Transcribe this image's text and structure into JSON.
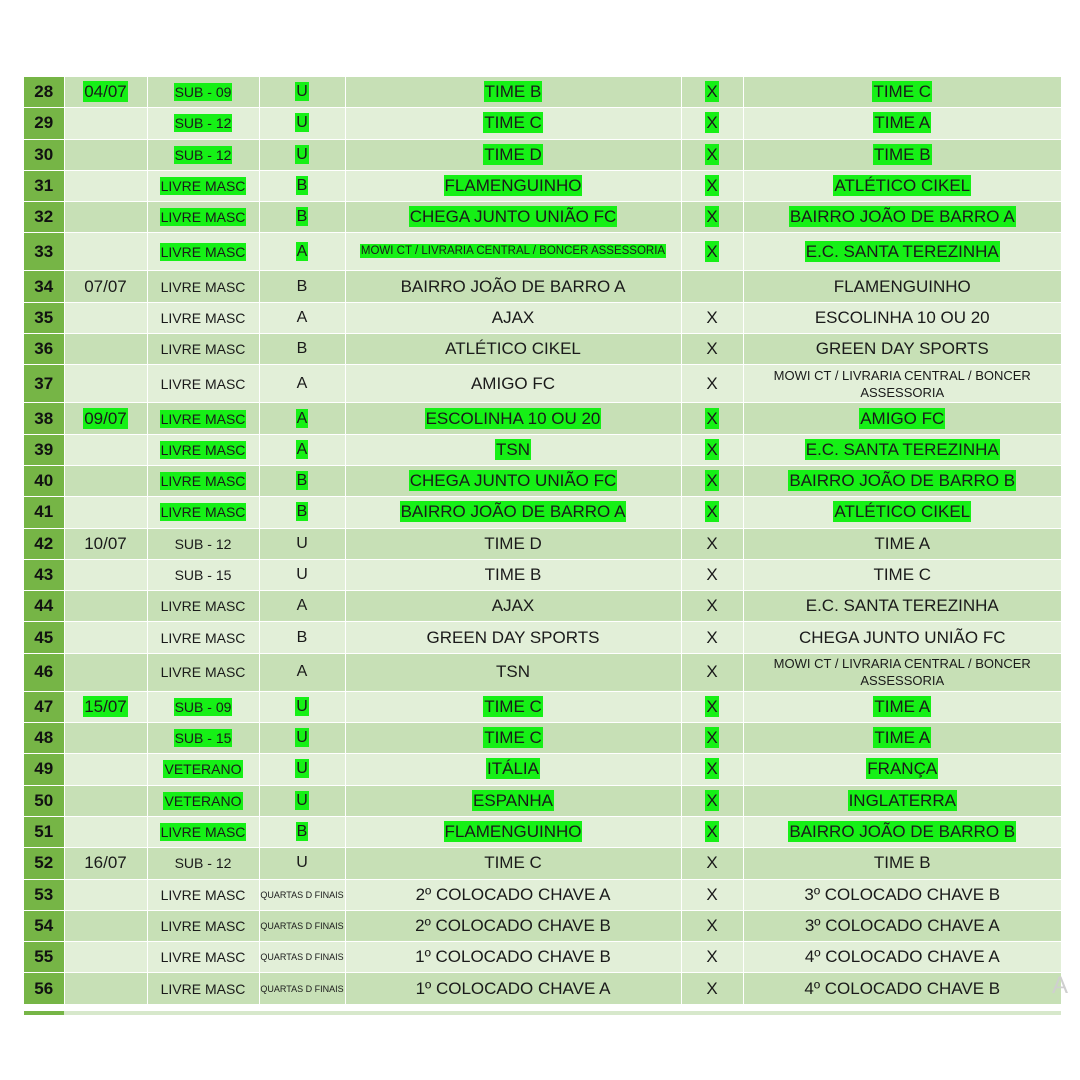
{
  "colors": {
    "row_odd": "#c7e0b6",
    "row_even": "#e2efd8",
    "number_col": "#76b546",
    "highlight": "#16f016"
  },
  "rows": [
    {
      "num": "28",
      "date": "04/07",
      "cat": "SUB - 09",
      "grp": "U",
      "home": "TIME B",
      "vs": "X",
      "away": "TIME C",
      "hl": true
    },
    {
      "num": "29",
      "date": "",
      "cat": "SUB - 12",
      "grp": "U",
      "home": "TIME C",
      "vs": "X",
      "away": "TIME A",
      "hl": true
    },
    {
      "num": "30",
      "date": "",
      "cat": "SUB - 12",
      "grp": "U",
      "home": "TIME D",
      "vs": "X",
      "away": "TIME B",
      "hl": true
    },
    {
      "num": "31",
      "date": "",
      "cat": "LIVRE MASC",
      "grp": "B",
      "home": "FLAMENGUINHO",
      "vs": "X",
      "away": "ATLÉTICO CIKEL",
      "hl": true
    },
    {
      "num": "32",
      "date": "",
      "cat": "LIVRE MASC",
      "grp": "B",
      "home": "CHEGA JUNTO UNIÃO FC",
      "vs": "X",
      "away": "BAIRRO JOÃO DE BARRO A",
      "hl": true
    },
    {
      "num": "33",
      "date": "",
      "cat": "LIVRE MASC",
      "grp": "A",
      "home": "MOWI CT / LIVRARIA CENTRAL / BONCER ASSESSORIA",
      "vs": "X",
      "away": "E.C. SANTA TEREZINHA",
      "hl": true,
      "tall": true,
      "home_small": true
    },
    {
      "num": "34",
      "date": "07/07",
      "cat": "LIVRE MASC",
      "grp": "B",
      "home": "BAIRRO JOÃO DE BARRO A",
      "vs": "",
      "away": "FLAMENGUINHO",
      "hl": false
    },
    {
      "num": "35",
      "date": "",
      "cat": "LIVRE MASC",
      "grp": "A",
      "home": "AJAX",
      "vs": "X",
      "away": "ESCOLINHA 10 OU 20",
      "hl": false
    },
    {
      "num": "36",
      "date": "",
      "cat": "LIVRE MASC",
      "grp": "B",
      "home": "ATLÉTICO CIKEL",
      "vs": "X",
      "away": "GREEN DAY SPORTS",
      "hl": false
    },
    {
      "num": "37",
      "date": "",
      "cat": "LIVRE MASC",
      "grp": "A",
      "home": "AMIGO FC",
      "vs": "X",
      "away": "MOWI CT / LIVRARIA CENTRAL / BONCER ASSESSORIA",
      "hl": false,
      "tall": true,
      "away_small": true
    },
    {
      "num": "38",
      "date": "09/07",
      "cat": "LIVRE MASC",
      "grp": "A",
      "home": "ESCOLINHA 10 OU 20",
      "vs": "X",
      "away": "AMIGO FC",
      "hl": true
    },
    {
      "num": "39",
      "date": "",
      "cat": "LIVRE MASC",
      "grp": "A",
      "home": "TSN",
      "vs": "X",
      "away": "E.C. SANTA TEREZINHA",
      "hl": true
    },
    {
      "num": "40",
      "date": "",
      "cat": "LIVRE MASC",
      "grp": "B",
      "home": "CHEGA JUNTO UNIÃO FC",
      "vs": "X",
      "away": "BAIRRO JOÃO DE BARRO B",
      "hl": true
    },
    {
      "num": "41",
      "date": "",
      "cat": "LIVRE MASC",
      "grp": "B",
      "home": "BAIRRO JOÃO DE BARRO A",
      "vs": "X",
      "away": "ATLÉTICO CIKEL",
      "hl": true
    },
    {
      "num": "42",
      "date": "10/07",
      "cat": "SUB - 12",
      "grp": "U",
      "home": "TIME D",
      "vs": "X",
      "away": "TIME A",
      "hl": false
    },
    {
      "num": "43",
      "date": "",
      "cat": "SUB - 15",
      "grp": "U",
      "home": "TIME B",
      "vs": "X",
      "away": "TIME C",
      "hl": false
    },
    {
      "num": "44",
      "date": "",
      "cat": "LIVRE MASC",
      "grp": "A",
      "home": "AJAX",
      "vs": "X",
      "away": "E.C. SANTA TEREZINHA",
      "hl": false
    },
    {
      "num": "45",
      "date": "",
      "cat": "LIVRE MASC",
      "grp": "B",
      "home": "GREEN DAY SPORTS",
      "vs": "X",
      "away": "CHEGA JUNTO UNIÃO FC",
      "hl": false
    },
    {
      "num": "46",
      "date": "",
      "cat": "LIVRE MASC",
      "grp": "A",
      "home": "TSN",
      "vs": "X",
      "away": "MOWI CT / LIVRARIA CENTRAL / BONCER ASSESSORIA",
      "hl": false,
      "tall": true,
      "away_small": true
    },
    {
      "num": "47",
      "date": "15/07",
      "cat": "SUB - 09",
      "grp": "U",
      "home": "TIME C",
      "vs": "X",
      "away": "TIME A",
      "hl": true
    },
    {
      "num": "48",
      "date": "",
      "cat": "SUB - 15",
      "grp": "U",
      "home": "TIME C",
      "vs": "X",
      "away": "TIME A",
      "hl": true
    },
    {
      "num": "49",
      "date": "",
      "cat": "VETERANO",
      "grp": "U",
      "home": "ITÁLIA",
      "vs": "X",
      "away": "FRANÇA",
      "hl": true
    },
    {
      "num": "50",
      "date": "",
      "cat": "VETERANO",
      "grp": "U",
      "home": "ESPANHA",
      "vs": "X",
      "away": "INGLATERRA",
      "hl": true
    },
    {
      "num": "51",
      "date": "",
      "cat": "LIVRE MASC",
      "grp": "B",
      "home": "FLAMENGUINHO",
      "vs": "X",
      "away": "BAIRRO JOÃO DE BARRO B",
      "hl": true
    },
    {
      "num": "52",
      "date": "16/07",
      "cat": "SUB - 12",
      "grp": "U",
      "home": "TIME C",
      "vs": "X",
      "away": "TIME B",
      "hl": false
    },
    {
      "num": "53",
      "date": "",
      "cat": "LIVRE MASC",
      "grp": "QUARTAS D FINAIS",
      "home": "2º COLOCADO CHAVE A",
      "vs": "X",
      "away": "3º COLOCADO CHAVE B",
      "hl": false,
      "grp_small": true
    },
    {
      "num": "54",
      "date": "",
      "cat": "LIVRE MASC",
      "grp": "QUARTAS D FINAIS",
      "home": "2º COLOCADO CHAVE B",
      "vs": "X",
      "away": "3º COLOCADO CHAVE A",
      "hl": false,
      "grp_small": true
    },
    {
      "num": "55",
      "date": "",
      "cat": "LIVRE MASC",
      "grp": "QUARTAS D FINAIS",
      "home": "1º COLOCADO CHAVE B",
      "vs": "X",
      "away": "4º COLOCADO CHAVE A",
      "hl": false,
      "grp_small": true
    },
    {
      "num": "56",
      "date": "",
      "cat": "LIVRE MASC",
      "grp": "QUARTAS D FINAIS",
      "home": "1º COLOCADO CHAVE A",
      "vs": "X",
      "away": "4º COLOCADO CHAVE B",
      "hl": false,
      "grp_small": true
    }
  ],
  "edge_text": "A"
}
